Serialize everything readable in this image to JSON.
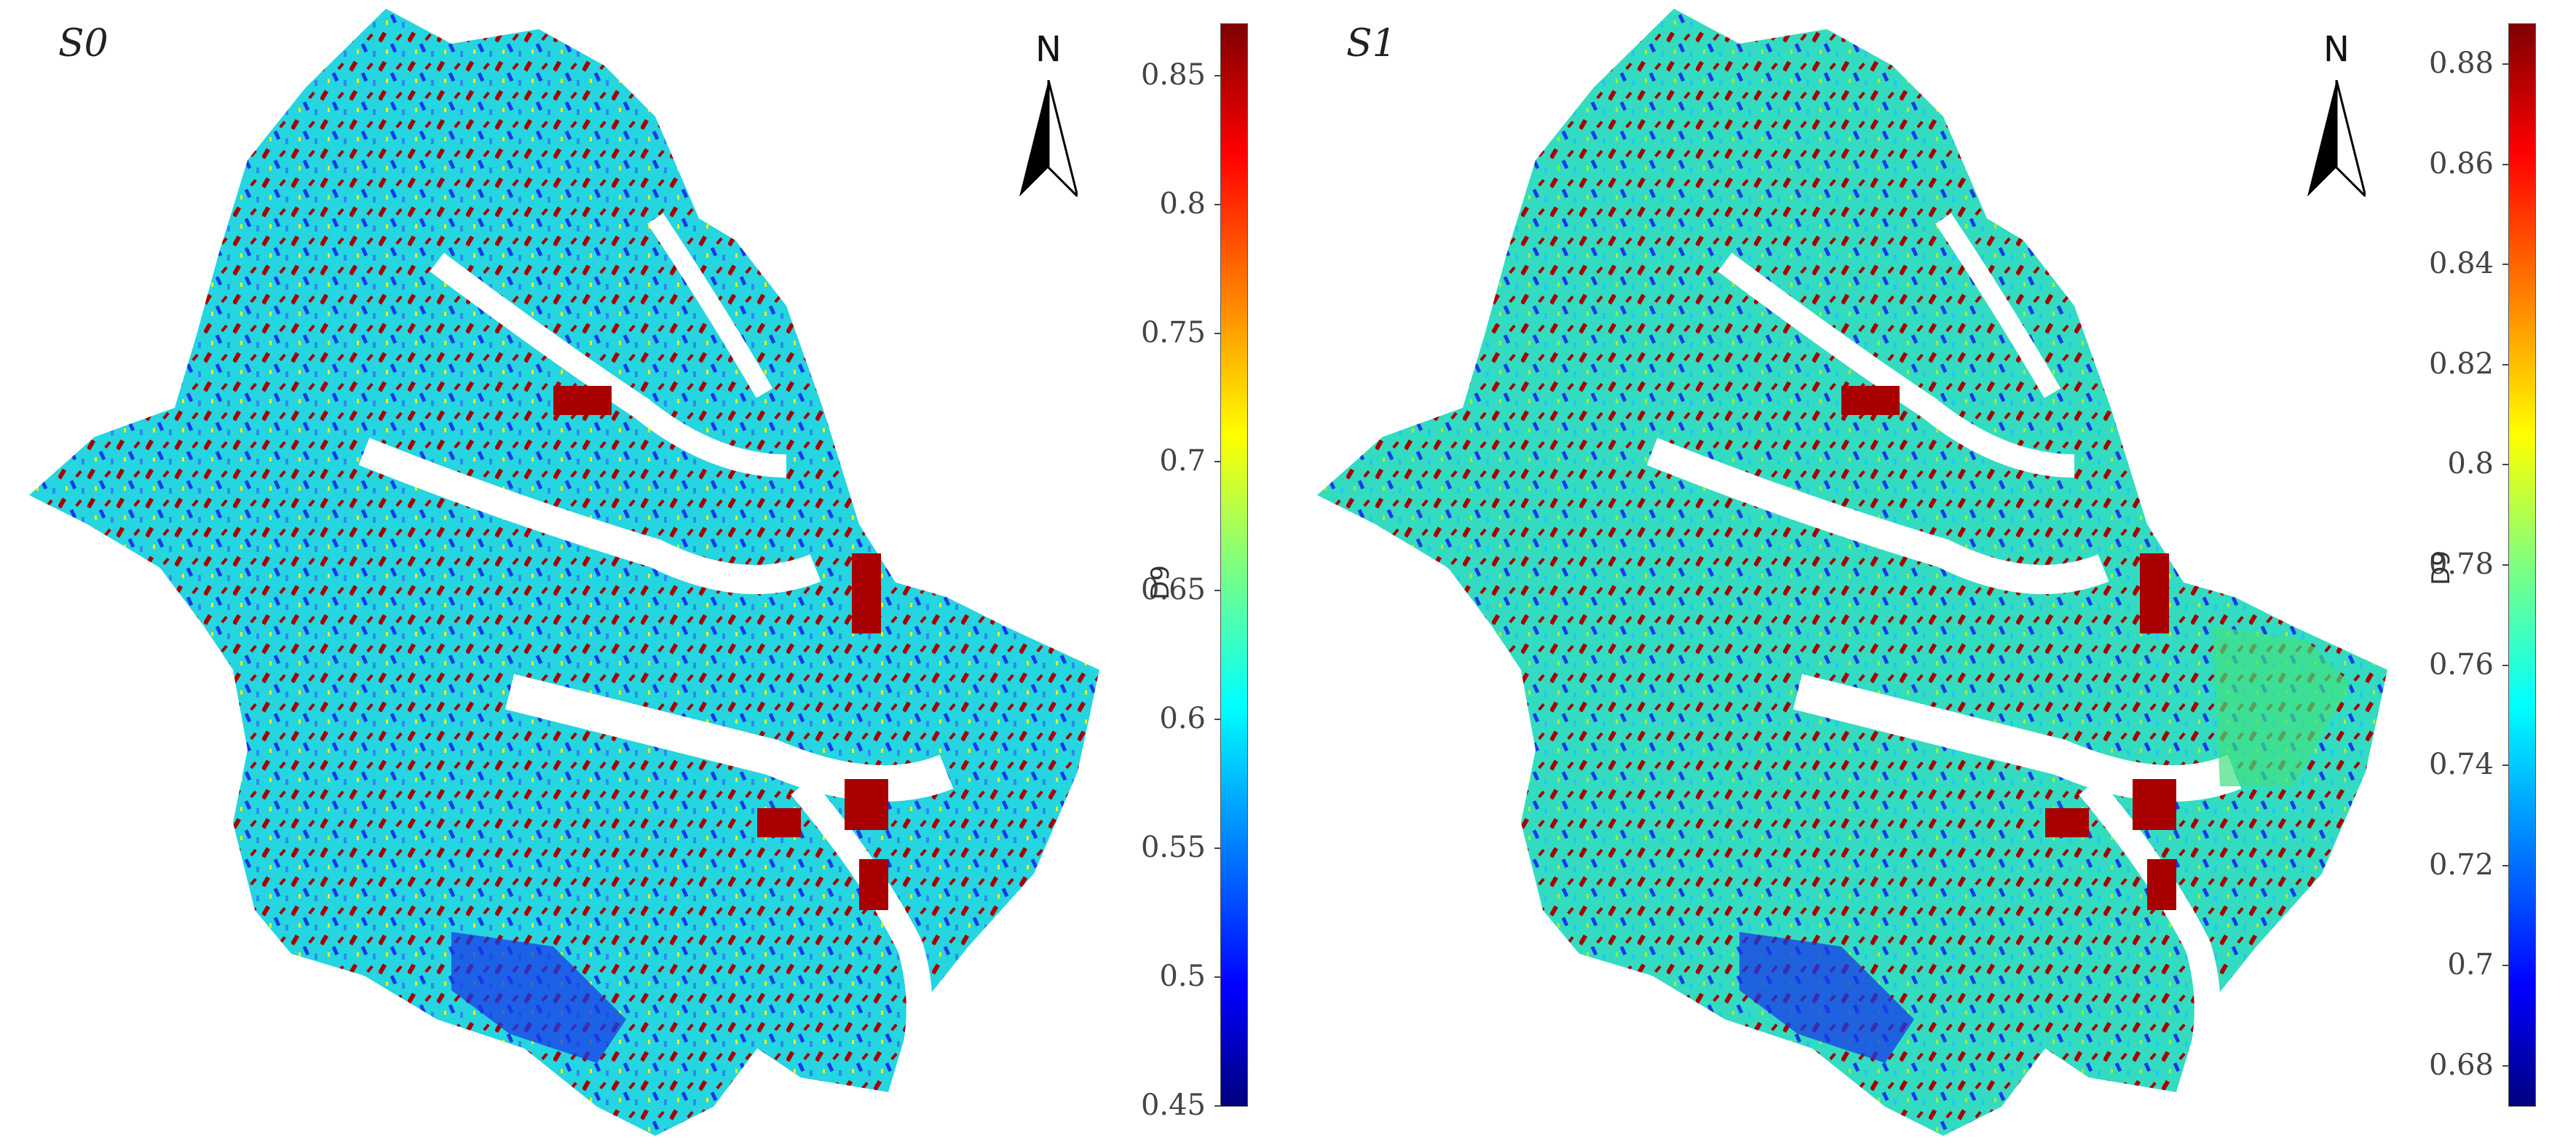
{
  "panels": [
    {
      "label": "S0",
      "north_label": "N",
      "colorbar": {
        "axis_label": "D9",
        "min": 0.45,
        "max": 0.87,
        "ticks": [
          "0.45",
          "0.5",
          "0.55",
          "0.6",
          "0.65",
          "0.7",
          "0.75",
          "0.8",
          "0.85"
        ],
        "colormap": "jet"
      }
    },
    {
      "label": "S1",
      "north_label": "N",
      "colorbar": {
        "axis_label": "D9",
        "min": 0.672,
        "max": 0.888,
        "ticks": [
          "0.68",
          "0.7",
          "0.72",
          "0.74",
          "0.76",
          "0.78",
          "0.8",
          "0.82",
          "0.84",
          "0.86",
          "0.88"
        ],
        "colormap": "jet"
      }
    }
  ],
  "colors": {
    "dominant_s0": "#1fd8e0",
    "dominant_s1": "#2fe0b8",
    "high": "#a80000",
    "low": "#1030e0"
  }
}
